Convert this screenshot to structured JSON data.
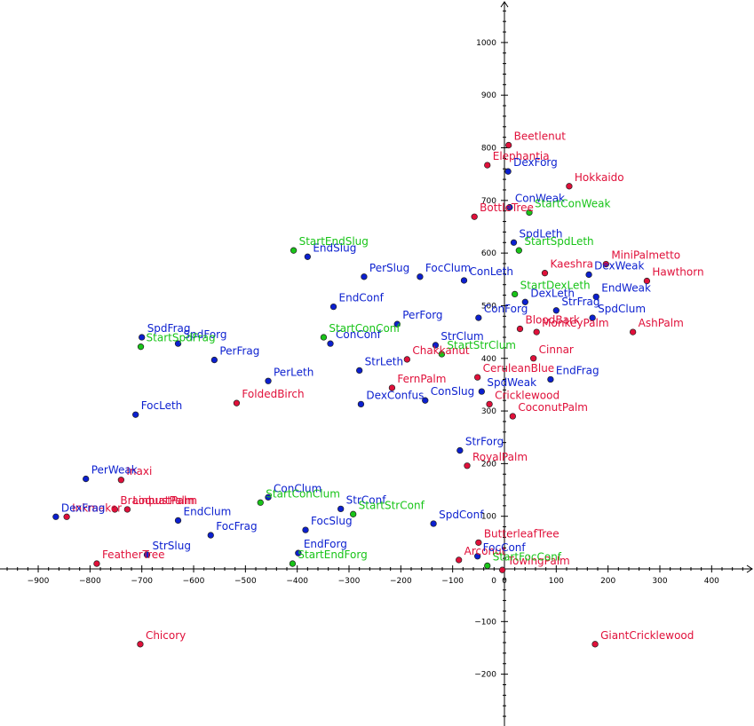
{
  "chart_data": {
    "type": "scatter",
    "title": "",
    "xlabel": "",
    "ylabel": "",
    "xlim": [
      -960,
      480
    ],
    "ylim": [
      -300,
      1080
    ],
    "grid": false,
    "x_ticks": [
      -900,
      -800,
      -700,
      -600,
      -500,
      -400,
      -300,
      -200,
      -100,
      0,
      100,
      200,
      300,
      400
    ],
    "y_ticks": [
      -200,
      -100,
      100,
      200,
      300,
      400,
      500,
      600,
      700,
      800,
      900,
      1000
    ],
    "colors": {
      "red": "#e0103a",
      "blue": "#0b1fcf",
      "green": "#18c418",
      "axis": "#000000"
    },
    "series": [
      {
        "color": "red",
        "points": [
          {
            "label": "Beetlenut",
            "x": 8,
            "y": 805
          },
          {
            "label": "Elephantia",
            "x": -33,
            "y": 767
          },
          {
            "label": "Hokkaido",
            "x": 125,
            "y": 727
          },
          {
            "label": "BottleTree",
            "x": -58,
            "y": 669
          },
          {
            "label": "Kaeshra",
            "x": 78,
            "y": 562
          },
          {
            "label": "MiniPalmetto",
            "x": 196,
            "y": 579
          },
          {
            "label": "Hawthorn",
            "x": 275,
            "y": 547
          },
          {
            "label": "BloodBark",
            "x": 30,
            "y": 456
          },
          {
            "label": "MonkeyPalm",
            "x": 62,
            "y": 450
          },
          {
            "label": "AshPalm",
            "x": 248,
            "y": 450
          },
          {
            "label": "Cinnar",
            "x": 56,
            "y": 400
          },
          {
            "label": "Chakkanut",
            "x": -188,
            "y": 398
          },
          {
            "label": "FernPalm",
            "x": -217,
            "y": 344
          },
          {
            "label": "CeruleanBlue",
            "x": -52,
            "y": 364
          },
          {
            "label": "Cricklewood",
            "x": -29,
            "y": 313
          },
          {
            "label": "CoconutPalm",
            "x": 16,
            "y": 290
          },
          {
            "label": "FoldedBirch",
            "x": -517,
            "y": 315
          },
          {
            "label": "RoyalPalm",
            "x": -72,
            "y": 196
          },
          {
            "label": "Inaxi",
            "x": -740,
            "y": 169
          },
          {
            "label": "BrainbustPalm",
            "x": -752,
            "y": 113
          },
          {
            "label": "LoquatPalm",
            "x": -728,
            "y": 113
          },
          {
            "label": "Inkmaker",
            "x": -845,
            "y": 99
          },
          {
            "label": "FeatherTree",
            "x": -787,
            "y": 10
          },
          {
            "label": "ButterleafTree",
            "x": -50,
            "y": 50
          },
          {
            "label": "Arconut",
            "x": -88,
            "y": 17
          },
          {
            "label": "TowingPalm",
            "x": -4,
            "y": -2
          },
          {
            "label": "Chicory",
            "x": -703,
            "y": -143
          },
          {
            "label": "GiantCricklewood",
            "x": 175,
            "y": -143
          }
        ]
      },
      {
        "color": "blue",
        "points": [
          {
            "label": "DexForg",
            "x": 7,
            "y": 755
          },
          {
            "label": "ConWeak",
            "x": 10,
            "y": 687
          },
          {
            "label": "SpdLeth",
            "x": 18,
            "y": 620
          },
          {
            "label": "DexWeak",
            "x": 163,
            "y": 559
          },
          {
            "label": "EndWeak",
            "x": 177,
            "y": 517
          },
          {
            "label": "DexLeth",
            "x": 40,
            "y": 507
          },
          {
            "label": "StrFrag",
            "x": 100,
            "y": 491
          },
          {
            "label": "SpdClum",
            "x": 170,
            "y": 477
          },
          {
            "label": "ConForg",
            "x": -50,
            "y": 477
          },
          {
            "label": "EndSlug",
            "x": -380,
            "y": 593
          },
          {
            "label": "PerSlug",
            "x": -271,
            "y": 555
          },
          {
            "label": "FocClum",
            "x": -163,
            "y": 555
          },
          {
            "label": "ConLeth",
            "x": -78,
            "y": 548
          },
          {
            "label": "EndConf",
            "x": -330,
            "y": 498
          },
          {
            "label": "PerForg",
            "x": -207,
            "y": 465
          },
          {
            "label": "ConConf",
            "x": -336,
            "y": 428
          },
          {
            "label": "SpdFrag",
            "x": -700,
            "y": 440
          },
          {
            "label": "SpdForg",
            "x": -630,
            "y": 428
          },
          {
            "label": "PerFrag",
            "x": -560,
            "y": 397
          },
          {
            "label": "StrClum",
            "x": -133,
            "y": 425
          },
          {
            "label": "StrLeth",
            "x": -280,
            "y": 377
          },
          {
            "label": "PerLeth",
            "x": -456,
            "y": 357
          },
          {
            "label": "EndFrag",
            "x": 89,
            "y": 360
          },
          {
            "label": "SpdWeak",
            "x": -44,
            "y": 337
          },
          {
            "label": "ConSlug",
            "x": -153,
            "y": 320
          },
          {
            "label": "DexConfus",
            "x": -277,
            "y": 313
          },
          {
            "label": "FocLeth",
            "x": -712,
            "y": 293
          },
          {
            "label": "StrForg",
            "x": -86,
            "y": 225
          },
          {
            "label": "PerWeak",
            "x": -808,
            "y": 171
          },
          {
            "label": "DexFrag",
            "x": -866,
            "y": 99
          },
          {
            "label": "ConClum",
            "x": -456,
            "y": 136
          },
          {
            "label": "StrConf",
            "x": -316,
            "y": 114
          },
          {
            "label": "EndClum",
            "x": -630,
            "y": 92
          },
          {
            "label": "SpdConf",
            "x": -137,
            "y": 86
          },
          {
            "label": "FocSlug",
            "x": -384,
            "y": 74
          },
          {
            "label": "FocFrag",
            "x": -567,
            "y": 64
          },
          {
            "label": "StrSlug",
            "x": -690,
            "y": 27
          },
          {
            "label": "EndForg",
            "x": -398,
            "y": 30
          },
          {
            "label": "FocConf",
            "x": -52,
            "y": 24
          }
        ]
      },
      {
        "color": "green",
        "points": [
          {
            "label": "StartConWeak",
            "x": 48,
            "y": 677
          },
          {
            "label": "StartEndSlug",
            "x": -407,
            "y": 605
          },
          {
            "label": "StartSpdLeth",
            "x": 28,
            "y": 605
          },
          {
            "label": "StartDexLeth",
            "x": 20,
            "y": 522
          },
          {
            "label": "StartConConf",
            "x": -349,
            "y": 440
          },
          {
            "label": "StartSpdFrag",
            "x": -702,
            "y": 422
          },
          {
            "label": "StartStrClum",
            "x": -121,
            "y": 408
          },
          {
            "label": "StartConClum",
            "x": -471,
            "y": 126
          },
          {
            "label": "StartStrConf",
            "x": -292,
            "y": 104
          },
          {
            "label": "StartEndForg",
            "x": -409,
            "y": 10
          },
          {
            "label": "StartFocConf",
            "x": -33,
            "y": 6
          }
        ]
      }
    ]
  }
}
